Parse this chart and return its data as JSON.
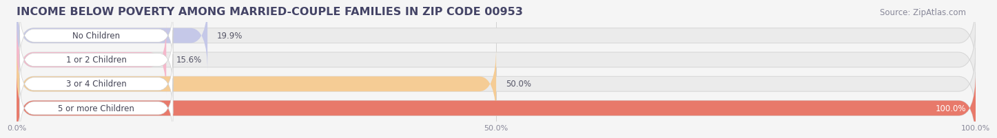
{
  "title": "INCOME BELOW POVERTY AMONG MARRIED-COUPLE FAMILIES IN ZIP CODE 00953",
  "source": "Source: ZipAtlas.com",
  "categories": [
    "No Children",
    "1 or 2 Children",
    "3 or 4 Children",
    "5 or more Children"
  ],
  "values": [
    19.9,
    15.6,
    50.0,
    100.0
  ],
  "bar_colors": [
    "#c5c8e8",
    "#f5b8cb",
    "#f5cc95",
    "#e8796a"
  ],
  "label_pill_colors": [
    "#c5c8e8",
    "#f5b8cb",
    "#f5cc95",
    "#e8796a"
  ],
  "xlim": [
    0,
    100
  ],
  "xticks": [
    0.0,
    50.0,
    100.0
  ],
  "xticklabels": [
    "0.0%",
    "50.0%",
    "100.0%"
  ],
  "title_fontsize": 11.5,
  "title_color": "#444466",
  "source_fontsize": 8.5,
  "source_color": "#888899",
  "bar_label_fontsize": 8.5,
  "category_fontsize": 8.5,
  "background_color": "#f5f5f5",
  "bar_bg_color": "#ebebeb",
  "bar_height": 0.62,
  "value_label_colors": [
    "#555577",
    "#885566",
    "#885500",
    "#ffffff"
  ]
}
